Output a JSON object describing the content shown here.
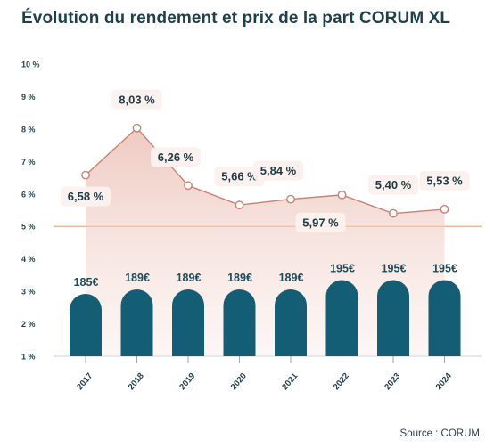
{
  "title": "Évolution du rendement et prix de la part CORUM XL",
  "source": "Source : CORUM",
  "chart_data": {
    "type": "bar",
    "title": "Évolution du rendement et prix de la part CORUM XL",
    "categories": [
      "2017",
      "2018",
      "2019",
      "2020",
      "2021",
      "2022",
      "2023",
      "2024"
    ],
    "ylim": [
      1,
      10
    ],
    "y_ticks": [
      "1 %",
      "2 %",
      "3 %",
      "4 %",
      "5 %",
      "6 %",
      "7 %",
      "8 %",
      "9 %",
      "10 %"
    ],
    "reference_line": 5,
    "series": [
      {
        "type": "bar",
        "values": [
          185,
          189,
          189,
          189,
          189,
          195,
          195,
          195
        ],
        "labels": [
          "185€",
          "189€",
          "189€",
          "189€",
          "189€",
          "195€",
          "195€",
          "195€"
        ],
        "color": "#135e74"
      },
      {
        "type": "area-line",
        "values": [
          6.58,
          8.03,
          6.26,
          5.66,
          5.84,
          5.97,
          5.4,
          5.53
        ],
        "labels": [
          "6,58 %",
          "8,03 %",
          "6,26 %",
          "5,66 %",
          "5,84 %",
          "5,97 %",
          "5,40 %",
          "5,53 %"
        ],
        "color": "#c9826f"
      }
    ],
    "grid": false,
    "legend": "none"
  }
}
